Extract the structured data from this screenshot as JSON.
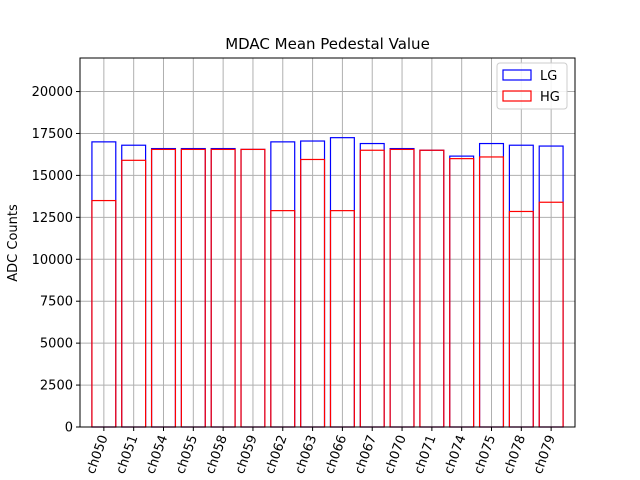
{
  "chart_data": {
    "type": "bar",
    "title": "MDAC Mean Pedestal Value",
    "xlabel": "",
    "ylabel": "ADC Counts",
    "ylim": [
      0,
      22000
    ],
    "yticks": [
      0,
      2500,
      5000,
      7500,
      10000,
      12500,
      15000,
      17500,
      20000
    ],
    "ytick_labels": [
      "0",
      "2500",
      "5000",
      "7500",
      "10000",
      "12500",
      "15000",
      "17500",
      "20000"
    ],
    "grid": true,
    "legend_position": "top-right",
    "categories": [
      "ch050",
      "ch051",
      "ch054",
      "ch055",
      "ch058",
      "ch059",
      "ch062",
      "ch063",
      "ch066",
      "ch067",
      "ch070",
      "ch071",
      "ch074",
      "ch075",
      "ch078",
      "ch079"
    ],
    "series": [
      {
        "name": "LG",
        "color": "#0000ff",
        "fill": "none",
        "values": [
          17000,
          16800,
          16600,
          16600,
          16600,
          16550,
          17000,
          17050,
          17250,
          16900,
          16600,
          16500,
          16150,
          16900,
          16800,
          16750
        ]
      },
      {
        "name": "HG",
        "color": "#ff0000",
        "fill": "none",
        "values": [
          13500,
          15900,
          16550,
          16550,
          16550,
          16550,
          12900,
          15950,
          12900,
          16500,
          16550,
          16500,
          16000,
          16100,
          12850,
          13400
        ]
      }
    ]
  }
}
